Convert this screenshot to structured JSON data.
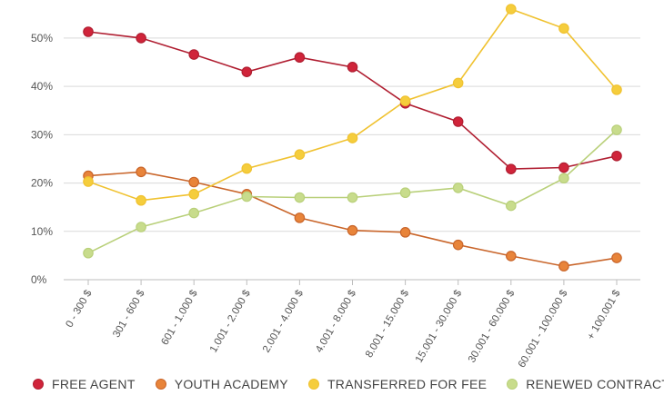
{
  "chart_data": {
    "type": "line",
    "title": "",
    "xlabel": "",
    "ylabel": "",
    "ylim": [
      0,
      56
    ],
    "yticks": [
      0,
      10,
      20,
      30,
      40,
      50
    ],
    "ytick_labels": [
      "0%",
      "10%",
      "20%",
      "30%",
      "40%",
      "50%"
    ],
    "grid": true,
    "legend_position": "bottom",
    "categories": [
      "0 - 300 $",
      "301 - 600 $",
      "601 - 1.000 $",
      "1.001 - 2.000 $",
      "2.001 - 4.000 $",
      "4.001 - 8.000 $",
      "8.001 - 15.000 $",
      "15.001 - 30.000 $",
      "30.001 - 60.000 $",
      "60.001 - 100.000 $",
      "+ 100.001 $"
    ],
    "series": [
      {
        "name": "FREE AGENT",
        "color": "#d0243a",
        "line_color": "#b01e31",
        "values": [
          51.3,
          50.0,
          46.6,
          43.0,
          46.0,
          44.0,
          36.5,
          32.7,
          22.9,
          23.2,
          25.6
        ]
      },
      {
        "name": "YOUTH ACADEMY",
        "color": "#e8843a",
        "line_color": "#c9652a",
        "values": [
          21.5,
          22.3,
          20.2,
          17.7,
          12.8,
          10.2,
          9.8,
          7.2,
          4.9,
          2.8,
          4.5
        ]
      },
      {
        "name": "TRANSFERRED FOR FEE",
        "color": "#f5cd3c",
        "line_color": "#f0c230",
        "values": [
          20.3,
          16.4,
          17.7,
          23.0,
          25.9,
          29.3,
          37.0,
          40.7,
          56.0,
          52.0,
          39.3
        ]
      },
      {
        "name": "RENEWED CONTRACT",
        "color": "#c8dc8c",
        "line_color": "#b9d07a",
        "values": [
          5.5,
          10.9,
          13.8,
          17.2,
          17.0,
          17.0,
          18.0,
          19.0,
          15.3,
          21.0,
          31.0
        ]
      }
    ]
  }
}
